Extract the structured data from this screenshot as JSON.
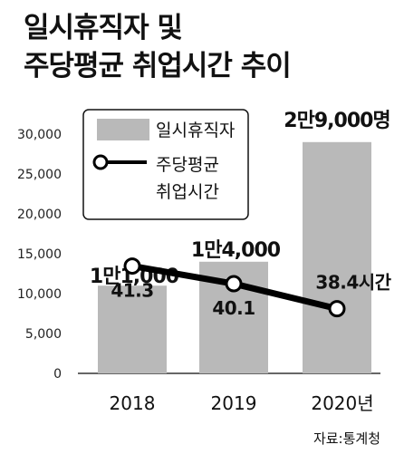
{
  "title_line1": "일시휴직자 및",
  "title_line2": "주당평균 취업시간 추이",
  "source": "자료:통계청",
  "colors": {
    "bar": "#b9b9b9",
    "line": "#000000",
    "marker_fill": "#ffffff"
  },
  "chart_data": {
    "type": "bar",
    "categories": [
      "2018",
      "2019",
      "2020년"
    ],
    "ylim": [
      0,
      30000
    ],
    "yticks": [
      "30,000",
      "25,000",
      "20,000",
      "15,000",
      "10,000",
      "5,000",
      "0"
    ],
    "grid": false,
    "legend_position": "top-left",
    "series": [
      {
        "name": "일시휴직자",
        "type": "bar",
        "values": [
          11000,
          14000,
          29000
        ],
        "labels": [
          "1만1,000",
          "1만4,000",
          "2만9,000명"
        ]
      },
      {
        "name": "주당평균 취업시간",
        "type": "line",
        "values": [
          41.3,
          40.1,
          38.4
        ],
        "labels": [
          "41.3",
          "40.1",
          "38.4시간"
        ]
      }
    ]
  }
}
